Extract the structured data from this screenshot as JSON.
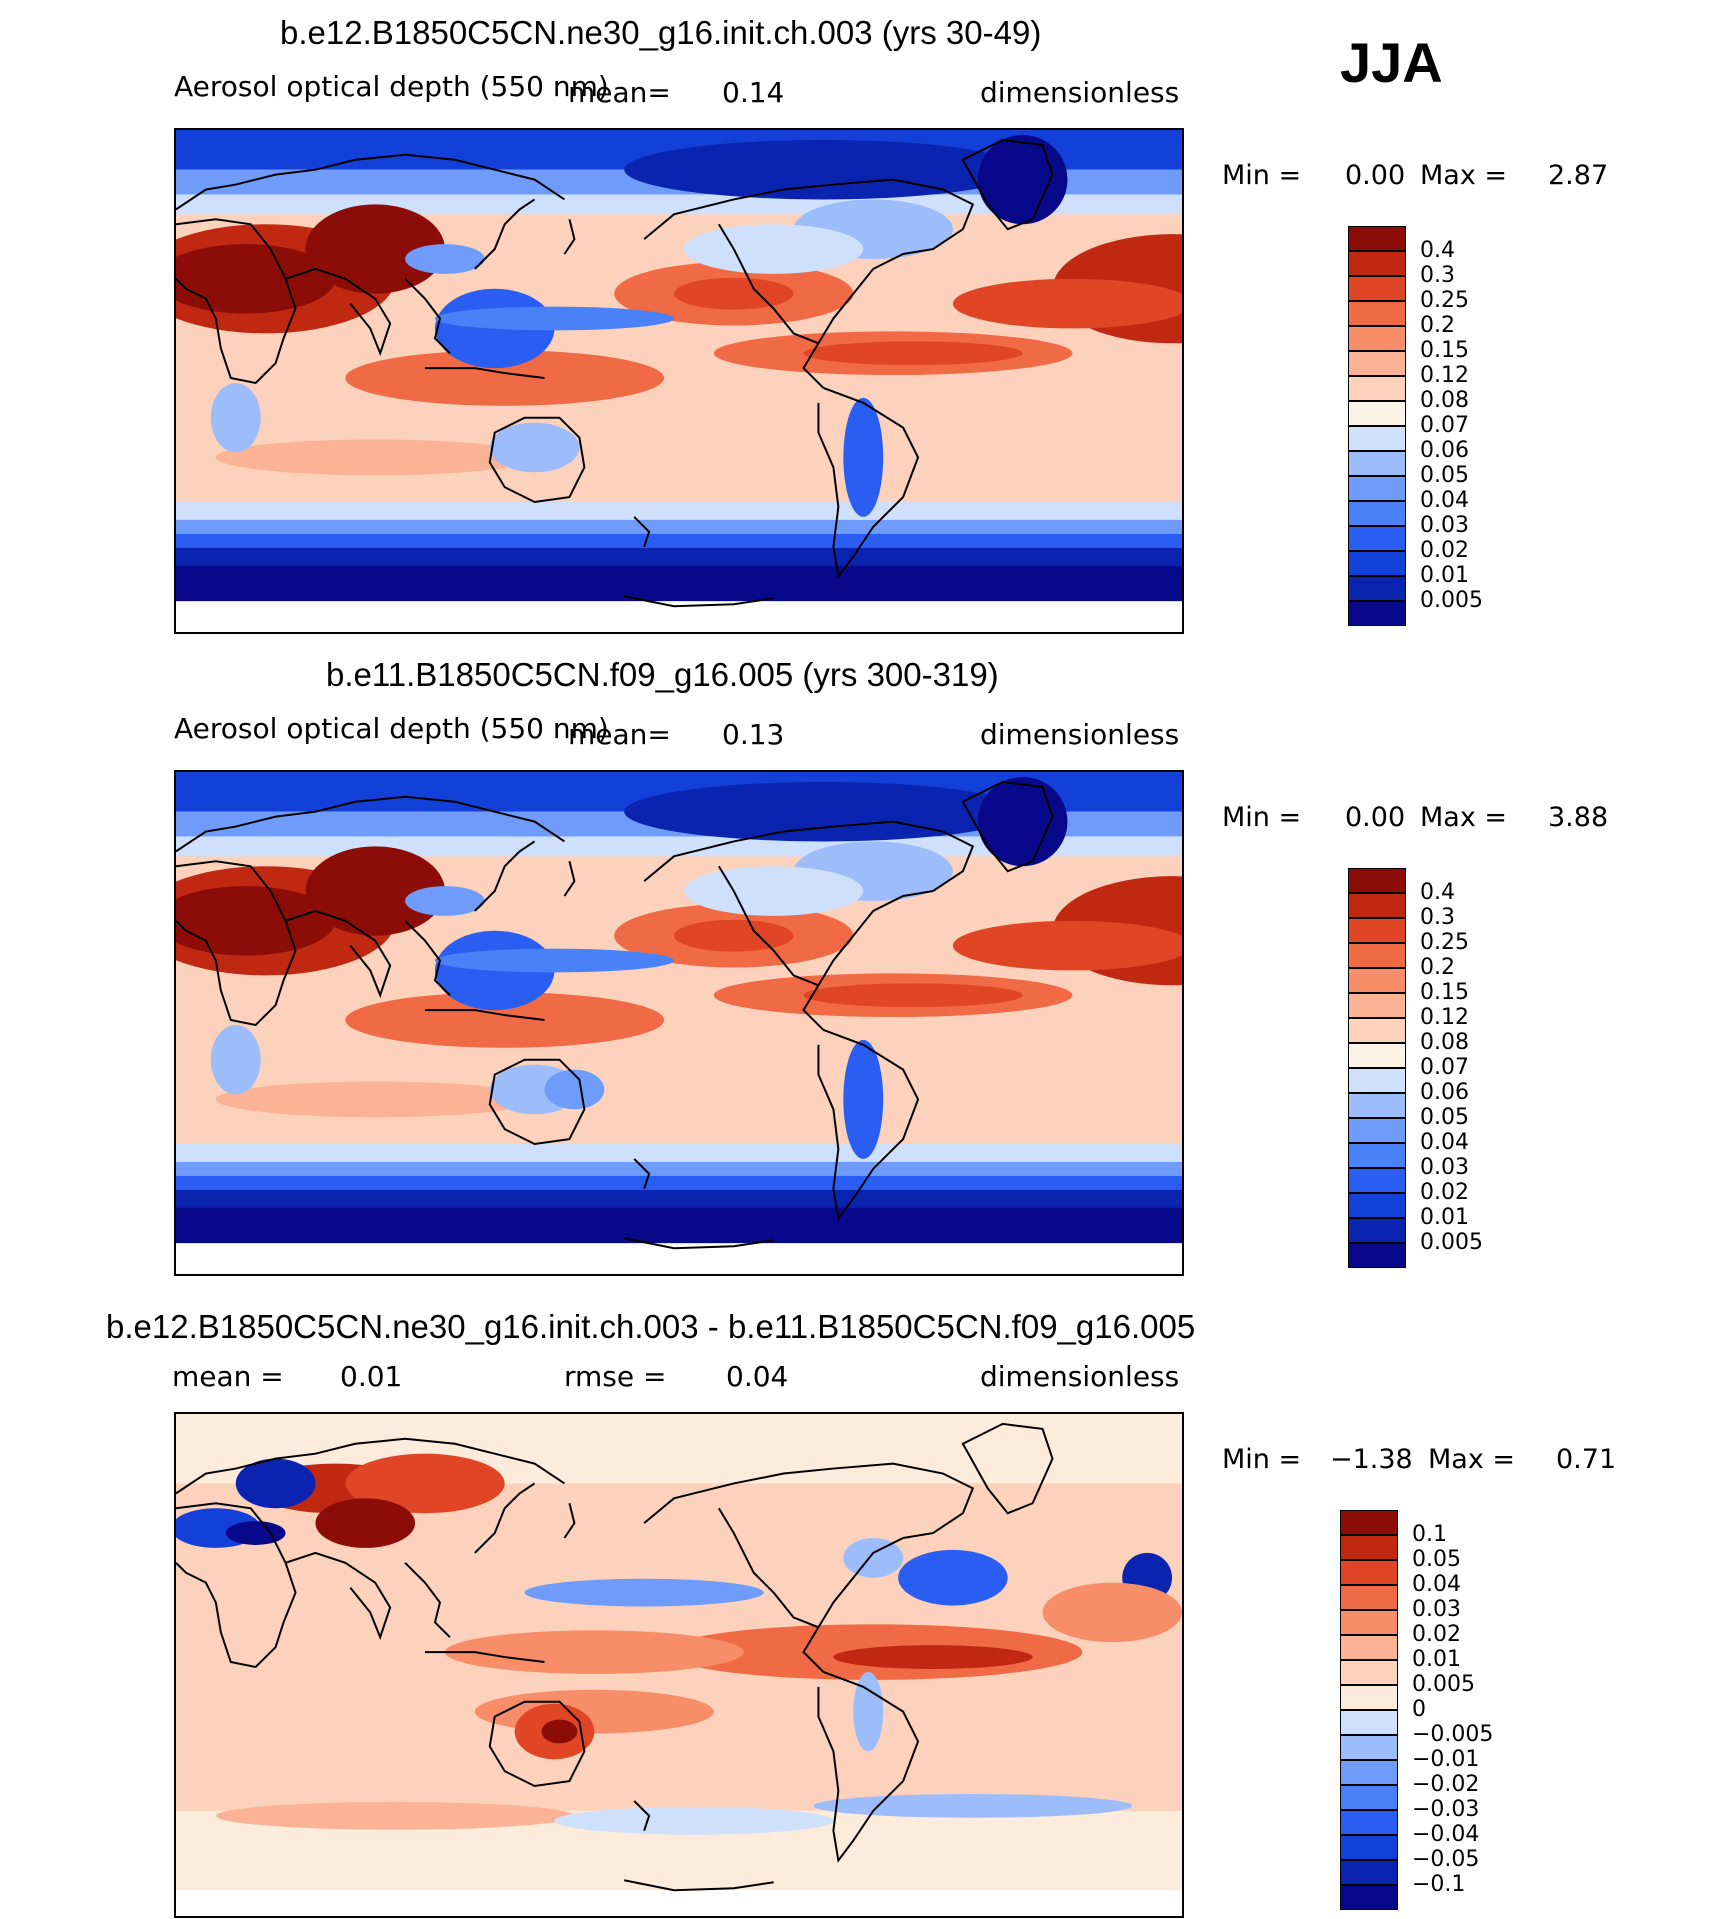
{
  "season": "JJA",
  "colors": {
    "aod": [
      "#08088a",
      "#0a24b0",
      "#1240d8",
      "#2a5ef2",
      "#4a80f8",
      "#6f9cfa",
      "#9cbcfa",
      "#cfe0fc",
      "#fdf3e6",
      "#fcd2bc",
      "#fbb295",
      "#f88d6a",
      "#f06a45",
      "#e04525",
      "#c02812",
      "#8c0c08"
    ],
    "diff": [
      "#08088a",
      "#0a24b0",
      "#1240d8",
      "#2a5ef2",
      "#4a80f8",
      "#6f9cfa",
      "#9cbcfa",
      "#cfe0fc",
      "#fdebdc",
      "#fcd2bc",
      "#fbb295",
      "#f88d6a",
      "#f06a45",
      "#e04525",
      "#c02812",
      "#8c0c08"
    ]
  },
  "panels": [
    {
      "title": "b.e12.B1850C5CN.ne30_g16.init.ch.003 (yrs 30-49)",
      "variable": "Aerosol optical depth (550 nm)",
      "mean_label": "mean=",
      "mean_value": "0.14",
      "units": "dimensionless",
      "min_label": "Min =",
      "min_value": "0.00",
      "max_label": "Max =",
      "max_value": "2.87",
      "levels": [
        "0.4",
        "0.3",
        "0.25",
        "0.2",
        "0.15",
        "0.12",
        "0.08",
        "0.07",
        "0.06",
        "0.05",
        "0.04",
        "0.03",
        "0.02",
        "0.01",
        "0.005"
      ]
    },
    {
      "title": "b.e11.B1850C5CN.f09_g16.005 (yrs 300-319)",
      "variable": "Aerosol optical depth (550 nm)",
      "mean_label": "mean=",
      "mean_value": "0.13",
      "units": "dimensionless",
      "min_label": "Min =",
      "min_value": "0.00",
      "max_label": "Max =",
      "max_value": "3.88",
      "levels": [
        "0.4",
        "0.3",
        "0.25",
        "0.2",
        "0.15",
        "0.12",
        "0.08",
        "0.07",
        "0.06",
        "0.05",
        "0.04",
        "0.03",
        "0.02",
        "0.01",
        "0.005"
      ]
    },
    {
      "title": "b.e12.B1850C5CN.ne30_g16.init.ch.003 - b.e11.B1850C5CN.f09_g16.005",
      "mean_label": "mean =",
      "mean_value": "0.01",
      "rmse_label": "rmse =",
      "rmse_value": "0.04",
      "units": "dimensionless",
      "min_label": "Min =",
      "min_value": "−1.38",
      "max_label": "Max =",
      "max_value": "0.71",
      "levels": [
        "0.1",
        "0.05",
        "0.04",
        "0.03",
        "0.02",
        "0.01",
        "0.005",
        "0",
        "−0.005",
        "−0.01",
        "−0.02",
        "−0.03",
        "−0.04",
        "−0.05",
        "−0.1"
      ]
    }
  ]
}
